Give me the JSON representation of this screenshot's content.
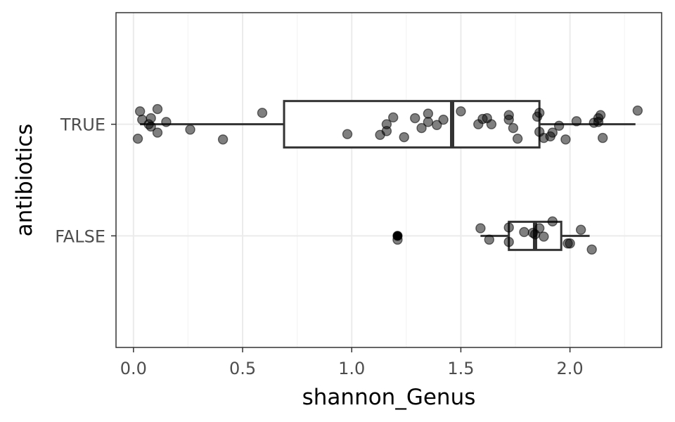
{
  "chart_data": {
    "type": "boxplot",
    "orientation": "horizontal",
    "xlabel": "shannon_Genus",
    "ylabel": "antibiotics",
    "xlim": [
      -0.08,
      2.42
    ],
    "x_ticks": [
      {
        "value": 0.0,
        "label": "0.0"
      },
      {
        "value": 0.5,
        "label": "0.5"
      },
      {
        "value": 1.0,
        "label": "1.0"
      },
      {
        "value": 1.5,
        "label": "1.5"
      },
      {
        "value": 2.0,
        "label": "2.0"
      }
    ],
    "x_minor_ticks": [
      0.25,
      0.75,
      1.25,
      1.75,
      2.25
    ],
    "categories": [
      "TRUE",
      "FALSE"
    ],
    "grid": true,
    "theme": "bw",
    "colors": {
      "grid_major": "#ebebeb",
      "grid_minor": "#f4f4f4",
      "box": "#333333",
      "point": "#000000",
      "panel_border": "#333333"
    },
    "boxes": [
      {
        "category": "TRUE",
        "whisker_low": 0.03,
        "q1": 0.69,
        "median": 1.46,
        "q3": 1.86,
        "whisker_high": 2.3,
        "outliers": []
      },
      {
        "category": "FALSE",
        "whisker_low": 1.59,
        "q1": 1.72,
        "median": 1.84,
        "q3": 1.96,
        "whisker_high": 2.09,
        "outliers": [
          1.21
        ]
      }
    ],
    "points": [
      {
        "category": "TRUE",
        "x": 0.03,
        "jitter": 0.17
      },
      {
        "category": "TRUE",
        "x": 0.04,
        "jitter": 0.06
      },
      {
        "category": "TRUE",
        "x": 0.02,
        "jitter": -0.19
      },
      {
        "category": "TRUE",
        "x": 0.11,
        "jitter": 0.2
      },
      {
        "category": "TRUE",
        "x": 0.08,
        "jitter": 0.08
      },
      {
        "category": "TRUE",
        "x": 0.15,
        "jitter": 0.03
      },
      {
        "category": "TRUE",
        "x": 0.07,
        "jitter": 0.0
      },
      {
        "category": "TRUE",
        "x": 0.08,
        "jitter": -0.03
      },
      {
        "category": "TRUE",
        "x": 0.11,
        "jitter": -0.11
      },
      {
        "category": "TRUE",
        "x": 0.26,
        "jitter": -0.07
      },
      {
        "category": "TRUE",
        "x": 0.41,
        "jitter": -0.2
      },
      {
        "category": "TRUE",
        "x": 0.59,
        "jitter": 0.15
      },
      {
        "category": "TRUE",
        "x": 0.98,
        "jitter": -0.13
      },
      {
        "category": "TRUE",
        "x": 1.13,
        "jitter": -0.14
      },
      {
        "category": "TRUE",
        "x": 1.16,
        "jitter": -0.09
      },
      {
        "category": "TRUE",
        "x": 1.16,
        "jitter": 0.0
      },
      {
        "category": "TRUE",
        "x": 1.19,
        "jitter": 0.09
      },
      {
        "category": "TRUE",
        "x": 1.24,
        "jitter": -0.17
      },
      {
        "category": "TRUE",
        "x": 1.29,
        "jitter": 0.08
      },
      {
        "category": "TRUE",
        "x": 1.32,
        "jitter": -0.05
      },
      {
        "category": "TRUE",
        "x": 1.35,
        "jitter": 0.03
      },
      {
        "category": "TRUE",
        "x": 1.35,
        "jitter": 0.14
      },
      {
        "category": "TRUE",
        "x": 1.39,
        "jitter": -0.01
      },
      {
        "category": "TRUE",
        "x": 1.42,
        "jitter": 0.06
      },
      {
        "category": "TRUE",
        "x": 1.5,
        "jitter": 0.17
      },
      {
        "category": "TRUE",
        "x": 1.58,
        "jitter": 0.0
      },
      {
        "category": "TRUE",
        "x": 1.6,
        "jitter": 0.07
      },
      {
        "category": "TRUE",
        "x": 1.62,
        "jitter": 0.08
      },
      {
        "category": "TRUE",
        "x": 1.64,
        "jitter": 0.0
      },
      {
        "category": "TRUE",
        "x": 1.72,
        "jitter": 0.12
      },
      {
        "category": "TRUE",
        "x": 1.72,
        "jitter": 0.06
      },
      {
        "category": "TRUE",
        "x": 1.74,
        "jitter": -0.05
      },
      {
        "category": "TRUE",
        "x": 1.76,
        "jitter": -0.19
      },
      {
        "category": "TRUE",
        "x": 1.85,
        "jitter": 0.1
      },
      {
        "category": "TRUE",
        "x": 1.86,
        "jitter": 0.15
      },
      {
        "category": "TRUE",
        "x": 1.86,
        "jitter": -0.1
      },
      {
        "category": "TRUE",
        "x": 1.88,
        "jitter": -0.18
      },
      {
        "category": "TRUE",
        "x": 1.91,
        "jitter": -0.16
      },
      {
        "category": "TRUE",
        "x": 1.92,
        "jitter": -0.11
      },
      {
        "category": "TRUE",
        "x": 1.95,
        "jitter": -0.02
      },
      {
        "category": "TRUE",
        "x": 1.98,
        "jitter": -0.2
      },
      {
        "category": "TRUE",
        "x": 2.03,
        "jitter": 0.04
      },
      {
        "category": "TRUE",
        "x": 2.11,
        "jitter": 0.02
      },
      {
        "category": "TRUE",
        "x": 2.13,
        "jitter": 0.08
      },
      {
        "category": "TRUE",
        "x": 2.13,
        "jitter": 0.03
      },
      {
        "category": "TRUE",
        "x": 2.14,
        "jitter": 0.12
      },
      {
        "category": "TRUE",
        "x": 2.15,
        "jitter": -0.18
      },
      {
        "category": "TRUE",
        "x": 2.31,
        "jitter": 0.18
      },
      {
        "category": "FALSE",
        "x": 1.21,
        "jitter": 0.0
      },
      {
        "category": "FALSE",
        "x": 1.21,
        "jitter": -0.05
      },
      {
        "category": "FALSE",
        "x": 1.59,
        "jitter": 0.1
      },
      {
        "category": "FALSE",
        "x": 1.63,
        "jitter": -0.05
      },
      {
        "category": "FALSE",
        "x": 1.72,
        "jitter": 0.11
      },
      {
        "category": "FALSE",
        "x": 1.72,
        "jitter": -0.08
      },
      {
        "category": "FALSE",
        "x": 1.79,
        "jitter": 0.05
      },
      {
        "category": "FALSE",
        "x": 1.83,
        "jitter": 0.04
      },
      {
        "category": "FALSE",
        "x": 1.84,
        "jitter": 0.02
      },
      {
        "category": "FALSE",
        "x": 1.86,
        "jitter": 0.1
      },
      {
        "category": "FALSE",
        "x": 1.88,
        "jitter": -0.01
      },
      {
        "category": "FALSE",
        "x": 1.92,
        "jitter": 0.19
      },
      {
        "category": "FALSE",
        "x": 1.99,
        "jitter": -0.1
      },
      {
        "category": "FALSE",
        "x": 2.0,
        "jitter": -0.1
      },
      {
        "category": "FALSE",
        "x": 2.05,
        "jitter": 0.08
      },
      {
        "category": "FALSE",
        "x": 2.1,
        "jitter": -0.18
      }
    ]
  }
}
